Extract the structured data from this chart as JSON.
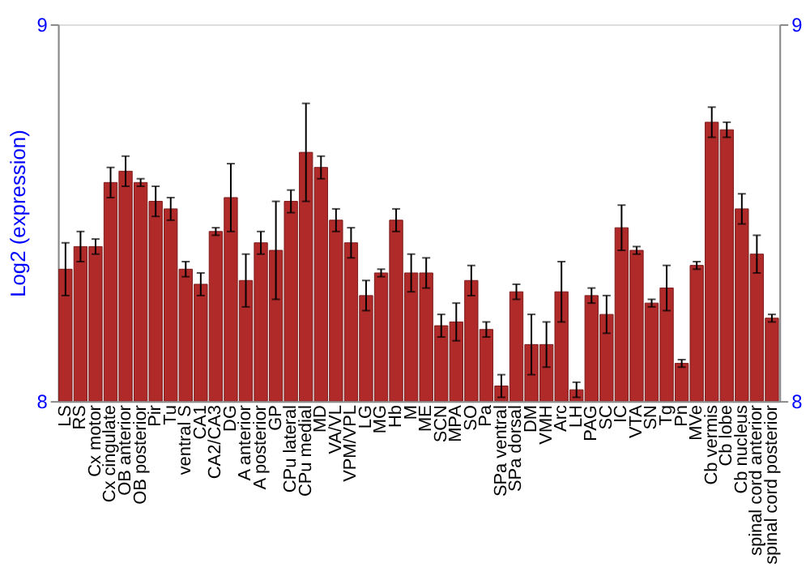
{
  "chart_data": {
    "type": "bar",
    "ylabel": "Log2 (expression)",
    "categories": [
      "LS",
      "RS",
      "Cx motor",
      "Cx cingulate",
      "OB anterior",
      "OB posterior",
      "Pir",
      "Tu",
      "ventral S",
      "CA1",
      "CA2/CA3",
      "DG",
      "A anterior",
      "A posterior",
      "GP",
      "CPu lateral",
      "CPu medial",
      "MD",
      "VA/VL",
      "VPM/VPL",
      "LG",
      "MG",
      "Hb",
      "M",
      "ME",
      "SCN",
      "MPA",
      "SO",
      "Pa",
      "SPa ventral",
      "SPa dorsal",
      "DM",
      "VMH",
      "Arc",
      "LH",
      "PAG",
      "SC",
      "IC",
      "VTA",
      "SN",
      "Tg",
      "Pn",
      "MVe",
      "Cb vermis",
      "Cb lobe",
      "Cb nucleus",
      "spinal cord anterior",
      "spinal cord posterior"
    ],
    "values": [
      8.35,
      8.41,
      8.41,
      8.58,
      8.61,
      8.58,
      8.53,
      8.51,
      8.35,
      8.31,
      8.45,
      8.54,
      8.32,
      8.42,
      8.4,
      8.53,
      8.66,
      8.62,
      8.48,
      8.42,
      8.28,
      8.34,
      8.48,
      8.34,
      8.34,
      8.2,
      8.21,
      8.32,
      8.19,
      8.04,
      8.29,
      8.15,
      8.15,
      8.29,
      8.03,
      8.28,
      8.23,
      8.46,
      8.4,
      8.26,
      8.3,
      8.1,
      8.36,
      8.74,
      8.72,
      8.51,
      8.39,
      8.22
    ],
    "errors": [
      0.07,
      0.04,
      0.02,
      0.04,
      0.04,
      0.01,
      0.04,
      0.03,
      0.02,
      0.03,
      0.01,
      0.09,
      0.07,
      0.03,
      0.13,
      0.03,
      0.13,
      0.03,
      0.03,
      0.04,
      0.04,
      0.01,
      0.03,
      0.05,
      0.04,
      0.03,
      0.05,
      0.04,
      0.02,
      0.03,
      0.02,
      0.08,
      0.06,
      0.08,
      0.02,
      0.02,
      0.05,
      0.06,
      0.01,
      0.01,
      0.06,
      0.01,
      0.01,
      0.04,
      0.02,
      0.04,
      0.05,
      0.01
    ],
    "color": "#b02a2a",
    "ylim": [
      8,
      9
    ],
    "yticks": [
      8,
      9
    ],
    "y2lim": [
      8,
      9
    ],
    "y2ticks": [
      8,
      9
    ],
    "grid": false
  }
}
